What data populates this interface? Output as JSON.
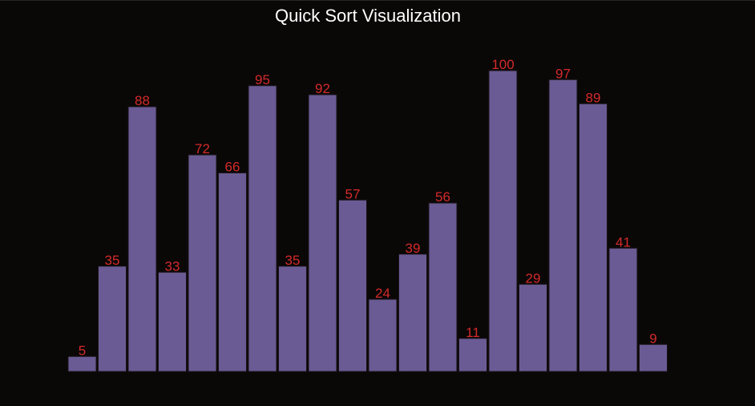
{
  "window": {
    "title": "Quick Sort Visualization"
  },
  "colors": {
    "background": "#0a0707",
    "bar_fill": "#6a5b94",
    "bar_stroke": "#1a1418",
    "value_label": "#d42a2a",
    "title_text": "#ffffff"
  },
  "chart_data": {
    "type": "bar",
    "title": "Quick Sort Visualization",
    "categories": [
      "",
      "",
      "",
      "",
      "",
      "",
      "",
      "",
      "",
      "",
      "",
      "",
      "",
      "",
      "",
      "",
      "",
      "",
      "",
      ""
    ],
    "values": [
      5,
      35,
      88,
      33,
      72,
      66,
      95,
      35,
      92,
      57,
      24,
      39,
      56,
      11,
      100,
      29,
      97,
      89,
      41,
      9
    ],
    "xlabel": "",
    "ylabel": "",
    "ylim": [
      0,
      100
    ],
    "grid": false,
    "data_labels": true
  }
}
